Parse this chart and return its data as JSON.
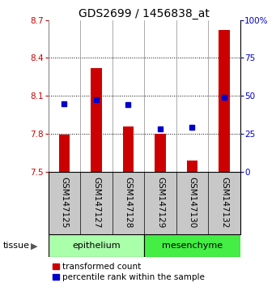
{
  "title": "GDS2699 / 1456838_at",
  "samples": [
    "GSM147125",
    "GSM147127",
    "GSM147128",
    "GSM147129",
    "GSM147130",
    "GSM147132"
  ],
  "red_values": [
    7.79,
    8.32,
    7.86,
    7.8,
    7.59,
    8.62
  ],
  "blue_values": [
    8.04,
    8.07,
    8.03,
    7.84,
    7.85,
    8.09
  ],
  "y_min": 7.5,
  "y_max": 8.7,
  "y_ticks": [
    7.5,
    7.8,
    8.1,
    8.4,
    8.7
  ],
  "right_y_ticks": [
    0,
    25,
    50,
    75,
    100
  ],
  "right_y_labels": [
    "0",
    "25",
    "50",
    "75",
    "100%"
  ],
  "groups": [
    {
      "label": "epithelium",
      "indices": [
        0,
        1,
        2
      ],
      "color": "#aaffaa"
    },
    {
      "label": "mesenchyme",
      "indices": [
        3,
        4,
        5
      ],
      "color": "#44ee44"
    }
  ],
  "bar_color": "#CC0000",
  "dot_color": "#0000CC",
  "bar_width": 0.35,
  "sample_bg_color": "#C8C8C8",
  "title_fontsize": 10,
  "tick_fontsize": 7.5,
  "label_fontsize": 7.5,
  "legend_fontsize": 7.5
}
